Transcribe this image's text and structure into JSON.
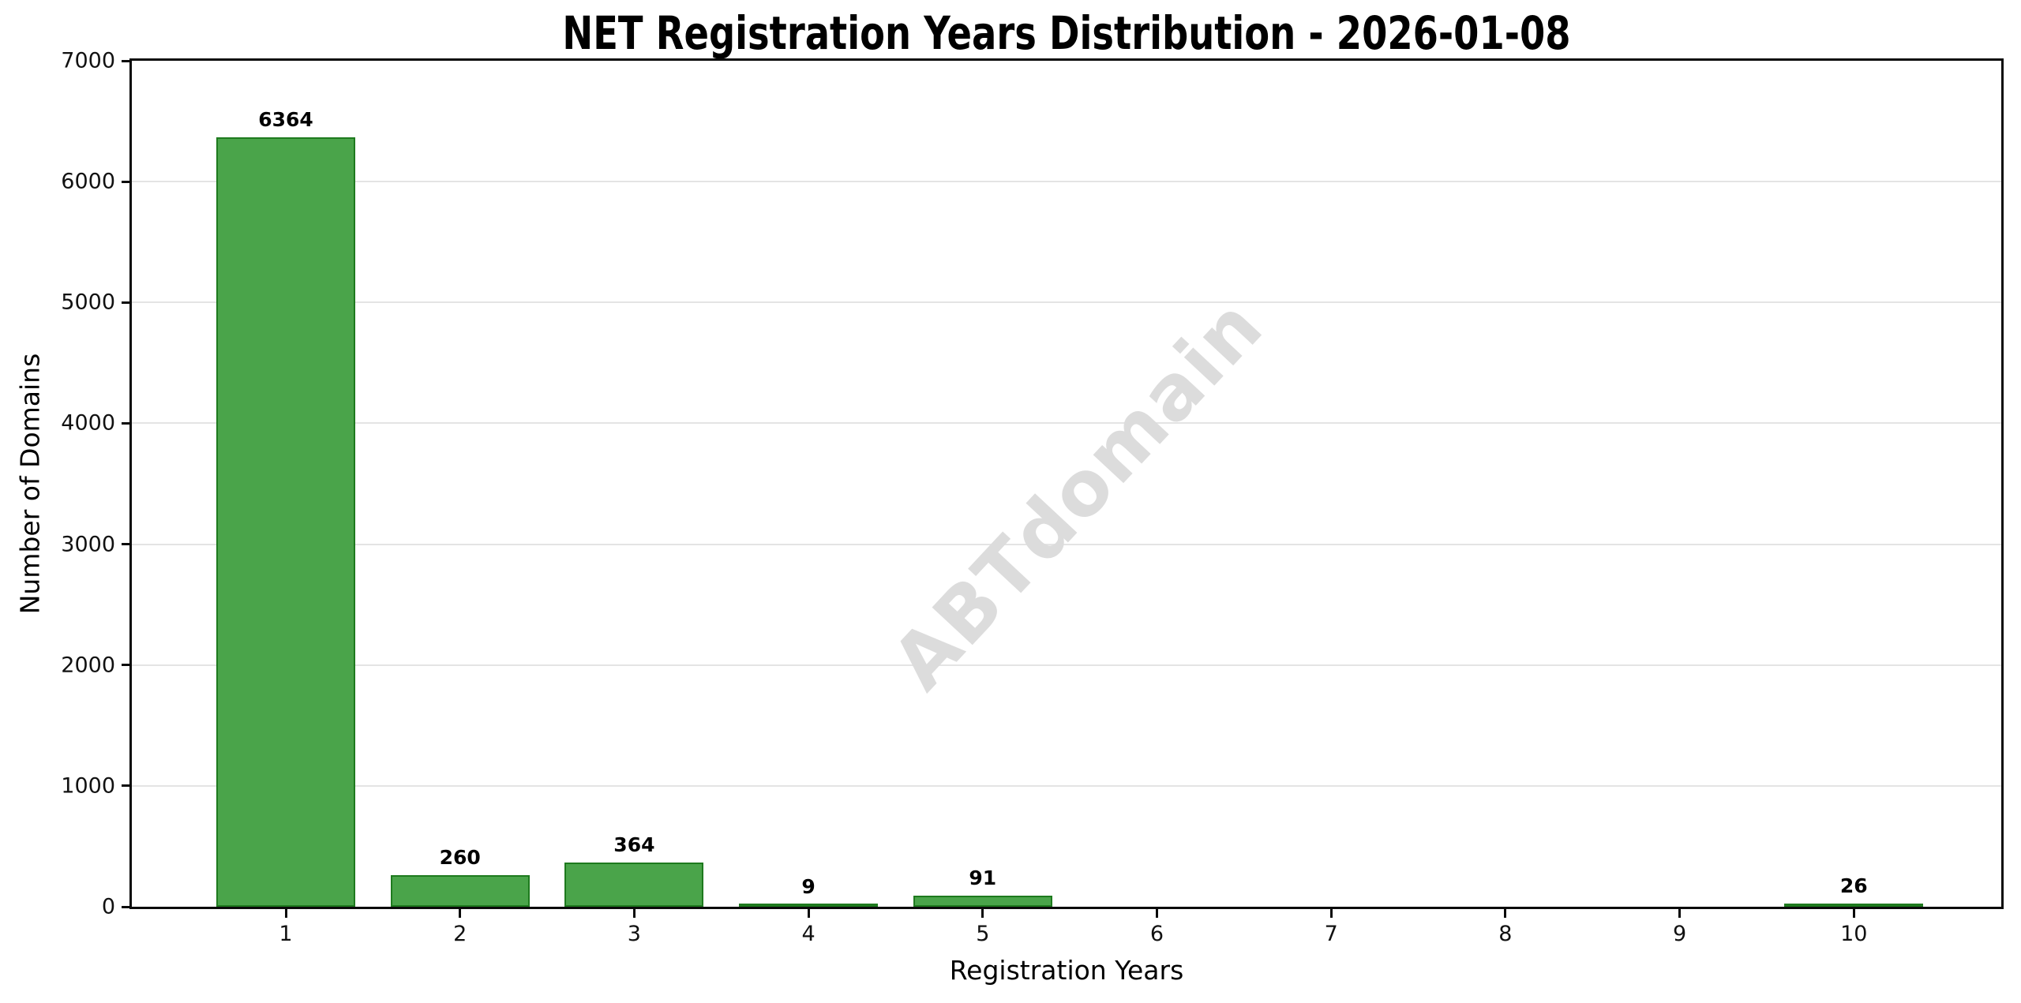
{
  "chart_data": {
    "type": "bar",
    "title": "NET Registration Years Distribution - 2026-01-08",
    "xlabel": "Registration Years",
    "ylabel": "Number of Domains",
    "categories": [
      "1",
      "2",
      "3",
      "4",
      "5",
      "6",
      "7",
      "8",
      "9",
      "10"
    ],
    "values": [
      6364,
      260,
      364,
      9,
      91,
      0,
      0,
      0,
      0,
      26
    ],
    "bar_value_labels": [
      "6364",
      "260",
      "364",
      "9",
      "91",
      "",
      "",
      "",
      "",
      "26"
    ],
    "yticks": [
      0,
      1000,
      2000,
      3000,
      4000,
      5000,
      6000,
      7000
    ],
    "ylim": [
      0,
      7000
    ],
    "grid": "horizontal light gray lines at each 1000",
    "legend_position": "none",
    "bar_color": "#4aa44a",
    "bar_edge_color": "#1e7a1e",
    "grid_color": "#e4e4e4",
    "axis_color": "#0a0a0a",
    "watermark": "ABTdomain",
    "watermark_color": "#dcdcdc"
  }
}
